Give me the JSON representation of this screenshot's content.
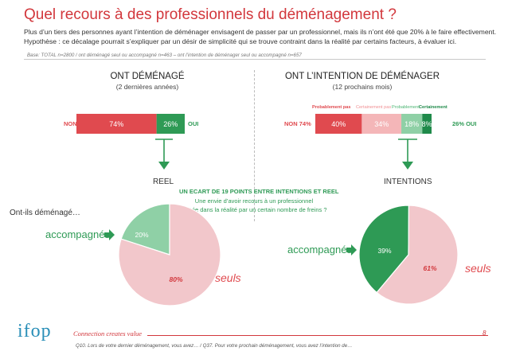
{
  "title": "Quel recours à des professionnels du déménagement ?",
  "intro_line1": "Plus d’un tiers des personnes ayant l’intention de déménager envisagent de passer par un professionnel, mais ils n’ont été que 20% à le faire effectivement.",
  "intro_line2": "Hypothèse : ce décalage pourrait s’expliquer par un désir de simplicité qui se trouve contraint dans la réalité par certains facteurs, à évaluer ici.",
  "base": "Base: TOTAL n=2800 / ont déménagé seul ou accompagné n=463 – ont l’intention de déménager seul ou accompagné n=657",
  "left": {
    "heading": "ONT DÉMÉNAGÉ",
    "subheading": "(2 dernières années)",
    "non_label": "NON",
    "oui_label": "OUI",
    "reel_label": "REEL"
  },
  "right": {
    "heading": "ONT L’INTENTION DE DÉMÉNAGER",
    "subheading": "(12 prochains mois)",
    "non_label": "NON 74%",
    "oui_label": "26% OUI",
    "intentions_label": "INTENTIONS"
  },
  "annotation": {
    "title": "UN ECART DE 19 POINTS ENTRE INTENTIONS ET REEL",
    "line1": "Une envie d’avoir recours à un professionnel",
    "line2": "limitée dans la réalité par un certain nombre de freins ?"
  },
  "side_question": "Ont-ils déménagé…",
  "accompagnes_label": "accompagnés",
  "seuls_label": "seuls",
  "footer": {
    "brand": "Connection creates value",
    "note": "Q10. Lors de votre dernier déménagement, vous avez… / Q37. Pour votre prochain déménagement, vous avez l’intention de…",
    "page": "8",
    "logo": "ifop"
  },
  "colors": {
    "red": "#e04a4f",
    "light_red": "#f4b6b8",
    "pink": "#f2c7cb",
    "green": "#2e9a55",
    "light_green": "#8fd0a6",
    "dark_green": "#1f8a4a"
  },
  "chart_data": [
    {
      "type": "bar",
      "title": "ONT DÉMÉNAGÉ",
      "categories": [
        "NON",
        "OUI"
      ],
      "values": [
        74,
        26
      ],
      "value_labels": [
        "74%",
        "26%"
      ]
    },
    {
      "type": "bar",
      "title": "ONT L’INTENTION DE DÉMÉNAGER",
      "legend": [
        "Probablement pas",
        "Certainement pas",
        "Probablement",
        "Certainement"
      ],
      "categories": [
        "Certainement pas",
        "Probablement pas",
        "Probablement",
        "Certainement"
      ],
      "values": [
        40,
        34,
        18,
        8
      ],
      "value_labels": [
        "40%",
        "34%",
        "18%",
        "8%"
      ]
    },
    {
      "type": "pie",
      "categories": [
        "accompagnés",
        "seuls"
      ],
      "values": [
        20,
        80
      ],
      "value_labels": [
        "20%",
        "80%"
      ]
    },
    {
      "type": "pie",
      "categories": [
        "accompagnés",
        "seuls"
      ],
      "values": [
        39,
        61
      ],
      "value_labels": [
        "39%",
        "61%"
      ]
    }
  ]
}
